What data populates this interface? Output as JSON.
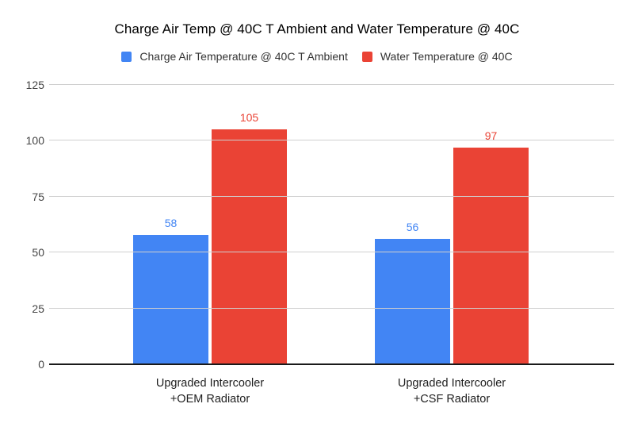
{
  "title": "Charge Air Temp @ 40C T Ambient and Water Temperature @ 40C",
  "chart_data": {
    "type": "bar",
    "title": "Charge Air Temp @ 40C T Ambient and Water Temperature @ 40C",
    "categories": [
      "Upgraded Intercooler\n+OEM Radiator",
      "Upgraded Intercooler\n+CSF Radiator"
    ],
    "series": [
      {
        "name": "Charge Air Temperature @ 40C T Ambient",
        "color": "#4285F4",
        "values": [
          58,
          56
        ]
      },
      {
        "name": "Water Temperature @ 40C",
        "color": "#EA4335",
        "values": [
          105,
          97
        ]
      }
    ],
    "yticks": [
      0,
      25,
      50,
      75,
      100,
      125
    ],
    "ylim": [
      0,
      125
    ],
    "xlabel": "",
    "ylabel": "",
    "grid": true,
    "legend_position": "top",
    "background": "#ffffff",
    "gridline_color": "#cfcfcf",
    "axis_line_color": "#1a1a1a",
    "tick_label_color": "#444444"
  }
}
